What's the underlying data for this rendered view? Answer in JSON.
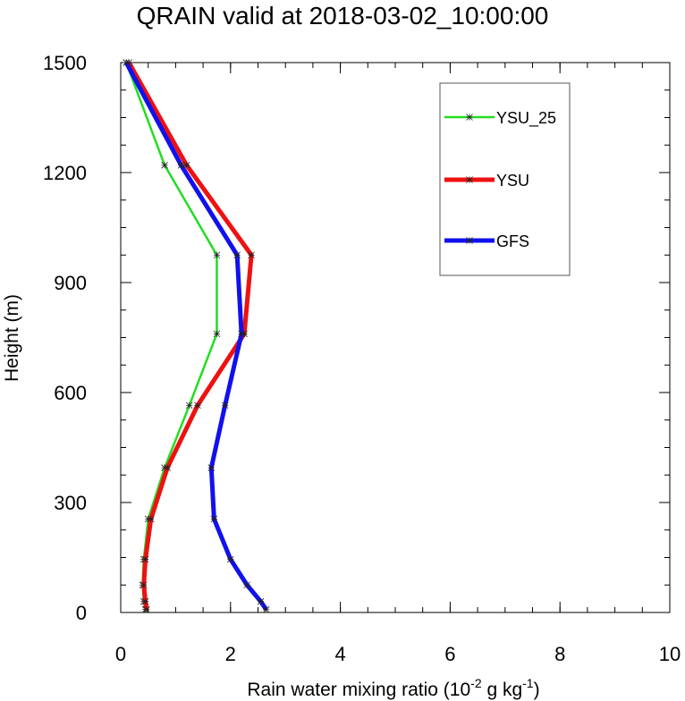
{
  "chart_data": {
    "type": "line",
    "title": "QRAIN valid at 2018-03-02_10:00:00",
    "xlabel": {
      "base": "Rain water mixing ratio (10",
      "exp1": "-2",
      "mid": " g kg",
      "exp2": "-1",
      "end": ")"
    },
    "ylabel": "Height (m)",
    "xlim": [
      0,
      10
    ],
    "ylim": [
      0,
      1500
    ],
    "x_ticks": [
      "0",
      "2",
      "4",
      "6",
      "8",
      "10"
    ],
    "y_ticks": [
      "0",
      "300",
      "600",
      "900",
      "1200",
      "1500"
    ],
    "grid": false,
    "legend_position": "top-right",
    "series": [
      {
        "name": "YSU_25",
        "color": "#22dd22",
        "points": [
          [
            0.45,
            8
          ],
          [
            0.42,
            30
          ],
          [
            0.4,
            75
          ],
          [
            0.42,
            145
          ],
          [
            0.5,
            255
          ],
          [
            0.8,
            395
          ],
          [
            1.25,
            565
          ],
          [
            1.75,
            760
          ],
          [
            1.75,
            975
          ],
          [
            0.8,
            1220
          ],
          [
            0.1,
            1500
          ]
        ]
      },
      {
        "name": "YSU",
        "color": "#ee1111",
        "points": [
          [
            0.47,
            8
          ],
          [
            0.45,
            30
          ],
          [
            0.42,
            75
          ],
          [
            0.45,
            145
          ],
          [
            0.55,
            255
          ],
          [
            0.85,
            395
          ],
          [
            1.4,
            565
          ],
          [
            2.25,
            760
          ],
          [
            2.38,
            975
          ],
          [
            1.2,
            1220
          ],
          [
            0.15,
            1500
          ]
        ]
      },
      {
        "name": "GFS",
        "color": "#1111ee",
        "points": [
          [
            2.65,
            8
          ],
          [
            2.55,
            30
          ],
          [
            2.3,
            75
          ],
          [
            2.0,
            145
          ],
          [
            1.7,
            255
          ],
          [
            1.65,
            395
          ],
          [
            1.9,
            565
          ],
          [
            2.2,
            760
          ],
          [
            2.12,
            975
          ],
          [
            1.1,
            1220
          ],
          [
            0.1,
            1500
          ]
        ]
      }
    ]
  }
}
